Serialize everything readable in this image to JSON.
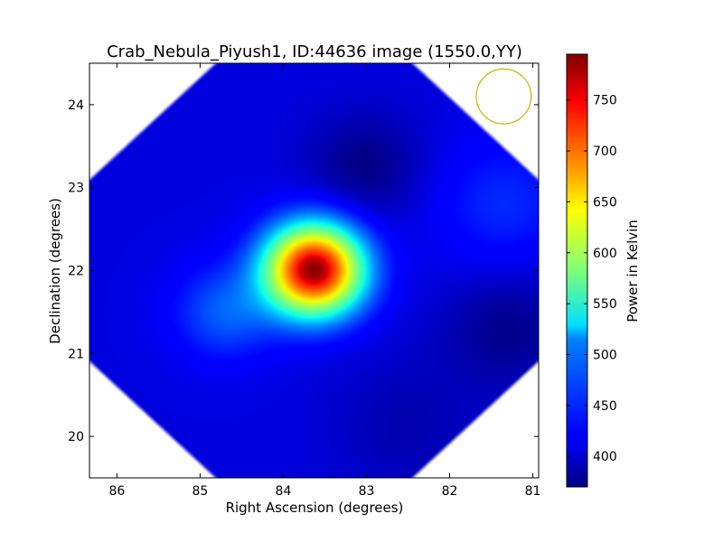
{
  "chart_data": {
    "type": "heatmap",
    "title": "Crab_Nebula_Piyush1, ID:44636 image (1550.0,YY)",
    "xlabel": "Right Ascension (degrees)",
    "ylabel": "Declination (degrees)",
    "xlim": [
      86.33,
      80.93
    ],
    "ylim": [
      19.5,
      24.5
    ],
    "x_ticks": [
      86,
      85,
      84,
      83,
      82,
      81
    ],
    "y_ticks": [
      20,
      21,
      22,
      23,
      24
    ],
    "colorbar": {
      "label": "Power in Kelvin",
      "range": [
        370,
        795
      ],
      "ticks": [
        400,
        450,
        500,
        550,
        600,
        650,
        700,
        750
      ],
      "colormap": "jet"
    },
    "background_level": 405,
    "sources": [
      {
        "ra": 83.63,
        "dec": 22.01,
        "peak": 790,
        "sigma_deg": 0.38
      },
      {
        "ra": 84.7,
        "dec": 21.5,
        "peak": 462,
        "sigma_deg": 0.4
      },
      {
        "ra": 81.35,
        "dec": 22.8,
        "peak": 440,
        "sigma_deg": 0.55
      },
      {
        "ra": 83.0,
        "dec": 23.25,
        "peak": 372,
        "sigma_deg": 0.45
      },
      {
        "ra": 81.3,
        "dec": 21.3,
        "peak": 375,
        "sigma_deg": 0.5
      },
      {
        "ra": 82.5,
        "dec": 20.1,
        "peak": 388,
        "sigma_deg": 0.6
      }
    ],
    "beam_circle": {
      "ra": 81.35,
      "dec": 24.1,
      "radius_deg": 0.33,
      "color": "#c8b400"
    },
    "grid": false,
    "legend": "none"
  }
}
